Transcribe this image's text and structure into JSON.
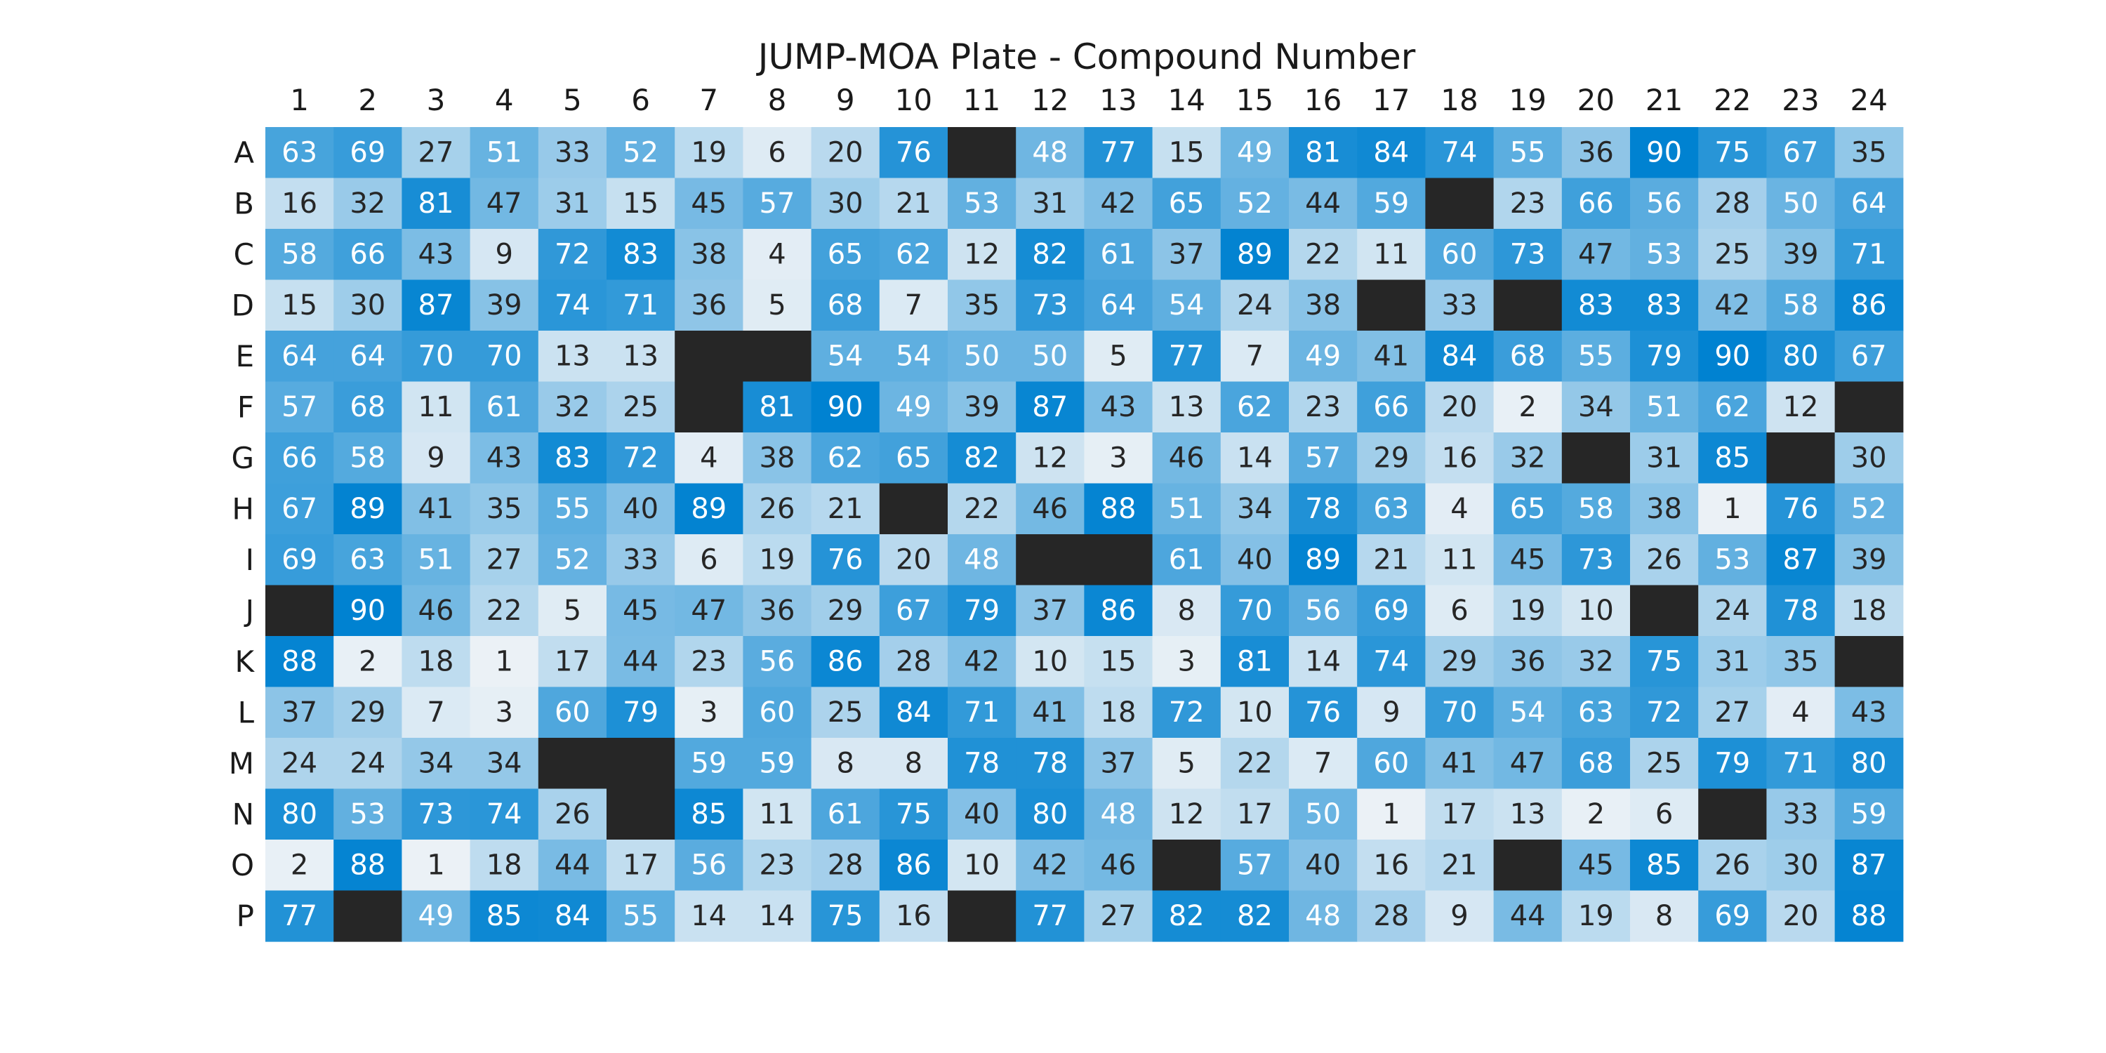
{
  "chart_data": {
    "type": "heatmap",
    "title": "JUMP-MOA Plate - Compound Number",
    "xlabel": "",
    "ylabel": "",
    "x_categories": [
      "1",
      "2",
      "3",
      "4",
      "5",
      "6",
      "7",
      "8",
      "9",
      "10",
      "11",
      "12",
      "13",
      "14",
      "15",
      "16",
      "17",
      "18",
      "19",
      "20",
      "21",
      "22",
      "23",
      "24"
    ],
    "y_categories": [
      "A",
      "B",
      "C",
      "D",
      "E",
      "F",
      "G",
      "H",
      "I",
      "J",
      "K",
      "L",
      "M",
      "N",
      "O",
      "P"
    ],
    "values": [
      [
        63,
        69,
        27,
        51,
        33,
        52,
        19,
        6,
        20,
        76,
        null,
        48,
        77,
        15,
        49,
        81,
        84,
        74,
        55,
        36,
        90,
        75,
        67,
        35
      ],
      [
        16,
        32,
        81,
        47,
        31,
        15,
        45,
        57,
        30,
        21,
        53,
        31,
        42,
        65,
        52,
        44,
        59,
        null,
        23,
        66,
        56,
        28,
        50,
        64
      ],
      [
        58,
        66,
        43,
        9,
        72,
        83,
        38,
        4,
        65,
        62,
        12,
        82,
        61,
        37,
        89,
        22,
        11,
        60,
        73,
        47,
        53,
        25,
        39,
        71
      ],
      [
        15,
        30,
        87,
        39,
        74,
        71,
        36,
        5,
        68,
        7,
        35,
        73,
        64,
        54,
        24,
        38,
        null,
        33,
        null,
        83,
        83,
        42,
        58,
        86
      ],
      [
        64,
        64,
        70,
        70,
        13,
        13,
        null,
        null,
        54,
        54,
        50,
        50,
        5,
        77,
        7,
        49,
        41,
        84,
        68,
        55,
        79,
        90,
        80,
        67
      ],
      [
        57,
        68,
        11,
        61,
        32,
        25,
        null,
        81,
        90,
        49,
        39,
        87,
        43,
        13,
        62,
        23,
        66,
        20,
        2,
        34,
        51,
        62,
        12,
        null
      ],
      [
        66,
        58,
        9,
        43,
        83,
        72,
        4,
        38,
        62,
        65,
        82,
        12,
        3,
        46,
        14,
        57,
        29,
        16,
        32,
        null,
        31,
        85,
        null,
        30
      ],
      [
        67,
        89,
        41,
        35,
        55,
        40,
        89,
        26,
        21,
        null,
        22,
        46,
        88,
        51,
        34,
        78,
        63,
        4,
        65,
        58,
        38,
        1,
        76,
        52
      ],
      [
        69,
        63,
        51,
        27,
        52,
        33,
        6,
        19,
        76,
        20,
        48,
        null,
        null,
        61,
        40,
        89,
        21,
        11,
        45,
        73,
        26,
        53,
        87,
        39
      ],
      [
        null,
        90,
        46,
        22,
        5,
        45,
        47,
        36,
        29,
        67,
        79,
        37,
        86,
        8,
        70,
        56,
        69,
        6,
        19,
        10,
        null,
        24,
        78,
        18
      ],
      [
        88,
        2,
        18,
        1,
        17,
        44,
        23,
        56,
        86,
        28,
        42,
        10,
        15,
        3,
        81,
        14,
        74,
        29,
        36,
        32,
        75,
        31,
        35,
        null
      ],
      [
        37,
        29,
        7,
        3,
        60,
        79,
        3,
        60,
        25,
        84,
        71,
        41,
        18,
        72,
        10,
        76,
        9,
        70,
        54,
        63,
        72,
        27,
        4,
        43
      ],
      [
        24,
        24,
        34,
        34,
        null,
        null,
        59,
        59,
        8,
        8,
        78,
        78,
        37,
        5,
        22,
        7,
        60,
        41,
        47,
        68,
        25,
        79,
        71,
        80
      ],
      [
        80,
        53,
        73,
        74,
        26,
        null,
        85,
        11,
        61,
        75,
        40,
        80,
        48,
        12,
        17,
        50,
        1,
        17,
        13,
        2,
        6,
        null,
        33,
        59
      ],
      [
        2,
        88,
        1,
        18,
        44,
        17,
        56,
        23,
        28,
        86,
        10,
        42,
        46,
        null,
        57,
        40,
        16,
        21,
        null,
        45,
        85,
        26,
        30,
        87
      ],
      [
        77,
        null,
        49,
        85,
        84,
        55,
        14,
        14,
        75,
        16,
        null,
        77,
        27,
        82,
        82,
        48,
        28,
        9,
        44,
        19,
        8,
        69,
        20,
        88
      ]
    ],
    "value_range": [
      1,
      90
    ],
    "colormap": {
      "low": "#ebf1f6",
      "high": "#0082d1",
      "missing": "#262626",
      "text_dark": "#262626",
      "text_light": "#ffffff"
    },
    "grid": false,
    "legend": "none"
  }
}
